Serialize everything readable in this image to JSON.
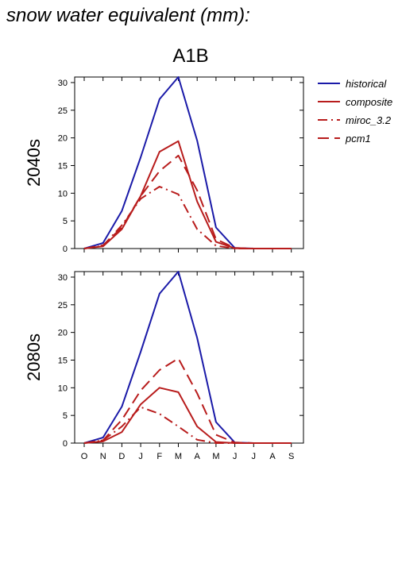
{
  "header": {
    "title": "snow water equivalent (mm):",
    "scenario": "A1B"
  },
  "colors": {
    "historical": "#1a1aa8",
    "composite": "#b81c1c",
    "miroc_3.2": "#b81c1c",
    "pcm1": "#b81c1c"
  },
  "legend": [
    {
      "label": "historical",
      "color": "#1a1aa8",
      "dash": "solid"
    },
    {
      "label": "composite",
      "color": "#b81c1c",
      "dash": "solid"
    },
    {
      "label": "miroc_3.2",
      "color": "#b81c1c",
      "dash": "dashdot"
    },
    {
      "label": "pcm1",
      "color": "#b81c1c",
      "dash": "dashed"
    }
  ],
  "chart_data": [
    {
      "type": "line",
      "panel_label": "2040s",
      "categories": [
        "O",
        "N",
        "D",
        "J",
        "F",
        "M",
        "A",
        "M",
        "J",
        "J",
        "A",
        "S"
      ],
      "ylim": [
        0,
        31
      ],
      "yticks": [
        0,
        5,
        10,
        15,
        20,
        25,
        30
      ],
      "series": [
        {
          "name": "historical",
          "dash": "solid",
          "color": "#1a1aa8",
          "values": [
            0,
            1.0,
            6.8,
            16.5,
            27.0,
            31.0,
            19.5,
            3.8,
            0.1,
            0,
            0,
            0
          ]
        },
        {
          "name": "composite",
          "dash": "solid",
          "color": "#b81c1c",
          "values": [
            0,
            0.4,
            3.5,
            9.5,
            17.5,
            19.4,
            8.5,
            1.2,
            0.05,
            0,
            0,
            0
          ]
        },
        {
          "name": "miroc_3.2",
          "dash": "dashdot",
          "color": "#b81c1c",
          "values": [
            0,
            0.5,
            4.2,
            9.0,
            11.2,
            9.8,
            3.5,
            0.5,
            0,
            0,
            0,
            0
          ]
        },
        {
          "name": "pcm1",
          "dash": "dashed",
          "color": "#b81c1c",
          "values": [
            0,
            0.6,
            3.8,
            9.5,
            14.0,
            16.8,
            10.5,
            1.7,
            0.1,
            0,
            0,
            0
          ]
        }
      ]
    },
    {
      "type": "line",
      "panel_label": "2080s",
      "categories": [
        "O",
        "N",
        "D",
        "J",
        "F",
        "M",
        "A",
        "M",
        "J",
        "J",
        "A",
        "S"
      ],
      "ylim": [
        0,
        31
      ],
      "yticks": [
        0,
        5,
        10,
        15,
        20,
        25,
        30
      ],
      "series": [
        {
          "name": "historical",
          "dash": "solid",
          "color": "#1a1aa8",
          "values": [
            0,
            1.0,
            6.6,
            16.5,
            27.0,
            31.0,
            19.0,
            3.8,
            0.1,
            0,
            0,
            0
          ]
        },
        {
          "name": "composite",
          "dash": "solid",
          "color": "#b81c1c",
          "values": [
            0,
            0.3,
            2.0,
            7.0,
            10.0,
            9.2,
            3.0,
            0.2,
            0,
            0,
            0,
            0
          ]
        },
        {
          "name": "miroc_3.2",
          "dash": "dashdot",
          "color": "#b81c1c",
          "values": [
            0,
            0.5,
            3.0,
            6.5,
            5.3,
            3.0,
            0.6,
            0,
            0,
            0,
            0,
            0
          ]
        },
        {
          "name": "pcm1",
          "dash": "dashed",
          "color": "#b81c1c",
          "values": [
            0,
            0.5,
            4.2,
            9.5,
            13.2,
            15.3,
            9.0,
            1.5,
            0.1,
            0,
            0,
            0
          ]
        }
      ]
    }
  ]
}
